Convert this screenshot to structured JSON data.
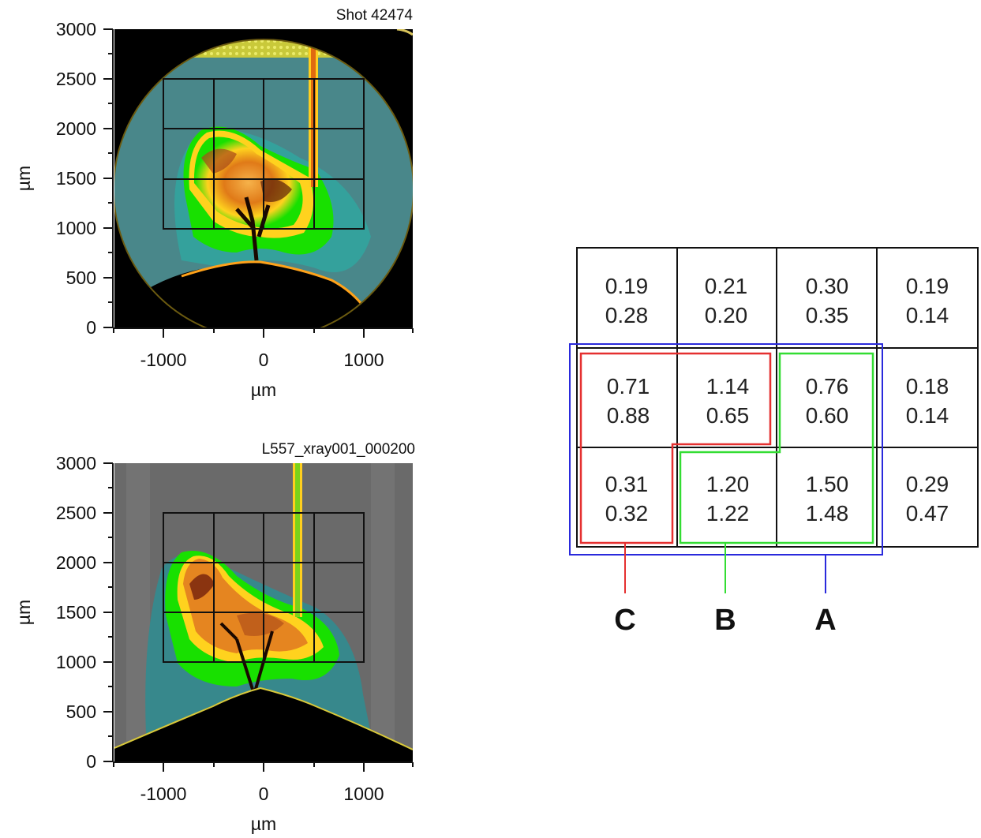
{
  "panels": [
    {
      "title": "Shot 42474",
      "xlabel": "µm",
      "ylabel": "µm",
      "xticks": [
        "-1000",
        "0",
        "1000"
      ],
      "yticks": [
        "3000",
        "2500",
        "2000",
        "1500",
        "1000",
        "500",
        "0"
      ]
    },
    {
      "title": "L557_xray001_000200",
      "xlabel": "µm",
      "ylabel": "µm",
      "xticks": [
        "-1000",
        "0",
        "1000"
      ],
      "yticks": [
        "3000",
        "2500",
        "2000",
        "1500",
        "1000",
        "500",
        "0"
      ]
    }
  ],
  "table": {
    "rows": [
      [
        [
          "0.19",
          "0.28"
        ],
        [
          "0.21",
          "0.20"
        ],
        [
          "0.30",
          "0.35"
        ],
        [
          "0.19",
          "0.14"
        ]
      ],
      [
        [
          "0.71",
          "0.88"
        ],
        [
          "1.14",
          "0.65"
        ],
        [
          "0.76",
          "0.60"
        ],
        [
          "0.18",
          "0.14"
        ]
      ],
      [
        [
          "0.31",
          "0.32"
        ],
        [
          "1.20",
          "1.22"
        ],
        [
          "1.50",
          "1.48"
        ],
        [
          "0.29",
          "0.47"
        ]
      ]
    ]
  },
  "regions": [
    {
      "label": "C",
      "color": "#e53030"
    },
    {
      "label": "B",
      "color": "#33dd33"
    },
    {
      "label": "A",
      "color": "#2a2adc"
    }
  ],
  "colors": {
    "background_teal": "#2f7f80",
    "plume_green": "#18e000",
    "plume_orange": "#f08a1a",
    "grid_line": "#111111"
  }
}
